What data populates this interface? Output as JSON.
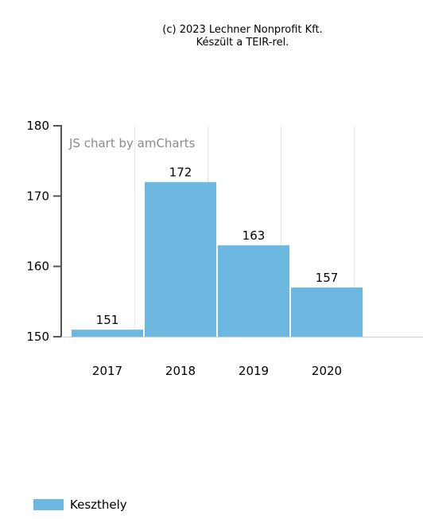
{
  "credit": {
    "line1": "(c) 2023 Lechner Nonprofit Kft.",
    "line2": "Készült a TEIR-rel."
  },
  "watermark": "JS chart by amCharts",
  "colors": {
    "bar": "#6cb8e0",
    "axis": "#555555",
    "grid": "#e7e7e7",
    "watermark": "#8a8a8a",
    "text": "#000000"
  },
  "chart_data": {
    "type": "bar",
    "categories": [
      "2017",
      "2018",
      "2019",
      "2020"
    ],
    "series": [
      {
        "name": "Keszthely",
        "values": [
          151,
          172,
          163,
          157
        ]
      }
    ],
    "ylim": [
      150,
      180
    ],
    "yticks": [
      "150",
      "160",
      "170",
      "180"
    ],
    "data_labels": [
      "151",
      "172",
      "163",
      "157"
    ],
    "grid": true,
    "legend": "bottom-left"
  }
}
